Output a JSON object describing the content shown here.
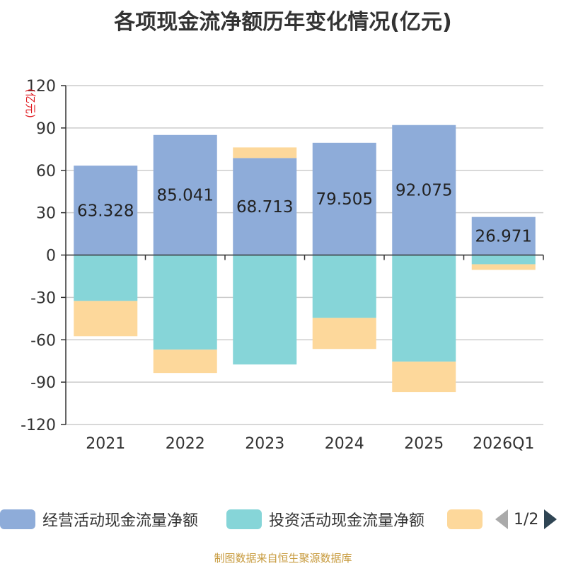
{
  "chart_data": {
    "type": "bar",
    "stacked": true,
    "title": "各项现金流净额历年变化情况(亿元)",
    "ylabel": "(亿元)",
    "xlabel": "",
    "ylim": [
      -120,
      120
    ],
    "yticks": [
      120,
      90,
      60,
      30,
      0,
      -30,
      -60,
      -90,
      -120
    ],
    "categories": [
      "2021",
      "2022",
      "2023",
      "2024",
      "2025",
      "2026Q1"
    ],
    "series": [
      {
        "name": "经营活动现金流量净额",
        "color": "#8eacd9",
        "values": [
          63.328,
          85.041,
          68.713,
          79.505,
          92.075,
          26.971
        ]
      },
      {
        "name": "投资活动现金流量净额",
        "color": "#86d5d8",
        "values": [
          -32.5,
          -67.0,
          -77.5,
          -44.5,
          -75.5,
          -6.5
        ]
      },
      {
        "name": "",
        "color": "#fdd89b",
        "values": [
          -25.0,
          -16.5,
          7.5,
          -22.0,
          -21.5,
          -4.0
        ]
      }
    ],
    "data_labels": [
      "63.328",
      "85.041",
      "68.713",
      "79.505",
      "92.075",
      "26.971"
    ],
    "legend_position": "bottom"
  },
  "legend": {
    "items": [
      "经营活动现金流量净额",
      "投资活动现金流量净额",
      ""
    ],
    "pager_text": "1/2"
  },
  "source_note": "制图数据来自恒生聚源数据库"
}
